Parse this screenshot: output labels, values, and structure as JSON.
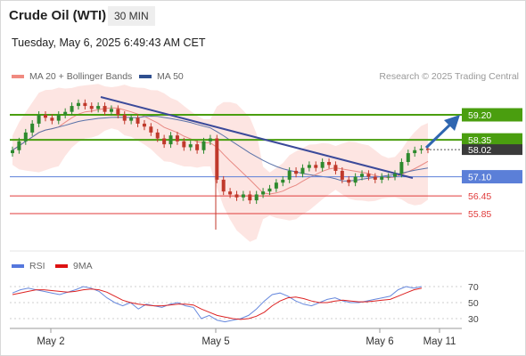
{
  "header": {
    "title": "Crude Oil (WTI)",
    "timeframe": "30 MIN",
    "timestamp": "Tuesday, May 6, 2025 6:49:43 AM CET"
  },
  "legend": {
    "ma20_label": "MA 20 + Bollinger Bands",
    "ma50_label": "MA 50",
    "rsi_label": "RSI",
    "ma9_label": "9MA",
    "research": "Research © 2025 Trading Central"
  },
  "colors": {
    "resistance": "#4a9e0f",
    "pivot": "#5b7fd8",
    "support": "#e03a3a",
    "bollinger_fill": "#fde0dd",
    "ma20": "#e88a84",
    "ma50": "#5a72a8",
    "trendline": "#3b4a9a",
    "arrow": "#2f66b0",
    "price_tag": "#3a3a3a",
    "candle_up": "#2e8a2e",
    "candle_down": "#c0392b",
    "rsi_line": "#6688dd",
    "rsi_ma": "#dd2222"
  },
  "chart_data": {
    "type": "candlestick",
    "title": "Crude Oil (WTI)",
    "timeframe": "30 MIN",
    "ylim": [
      55.5,
      60.0
    ],
    "x_ticks": [
      "May 2",
      "May 5",
      "May 6",
      "May 11"
    ],
    "last_price": 58.02,
    "levels": [
      {
        "label": "59.20",
        "value": 59.2,
        "kind": "resistance"
      },
      {
        "label": "58.35",
        "value": 58.35,
        "kind": "resistance"
      },
      {
        "label": "57.10",
        "value": 57.1,
        "kind": "pivot"
      },
      {
        "label": "56.45",
        "value": 56.45,
        "kind": "support"
      },
      {
        "label": "55.85",
        "value": 55.85,
        "kind": "support"
      }
    ],
    "last_price_label": "58.02",
    "series": [
      {
        "name": "MA 20 + Bollinger Bands"
      },
      {
        "name": "MA 50"
      }
    ],
    "close": [
      58.0,
      58.3,
      58.6,
      58.9,
      59.2,
      59.1,
      59.0,
      59.2,
      59.3,
      59.5,
      59.6,
      59.5,
      59.4,
      59.5,
      59.3,
      59.4,
      59.2,
      59.0,
      59.1,
      58.9,
      58.8,
      58.6,
      58.4,
      58.2,
      58.5,
      58.3,
      58.1,
      58.2,
      58.0,
      58.3,
      58.4,
      57.0,
      56.6,
      56.5,
      56.4,
      56.5,
      56.3,
      56.5,
      56.6,
      56.7,
      56.9,
      57.0,
      57.3,
      57.2,
      57.4,
      57.5,
      57.4,
      57.6,
      57.5,
      57.3,
      57.0,
      56.9,
      57.1,
      57.2,
      57.1,
      57.0,
      57.1,
      57.1,
      57.2,
      57.6,
      57.9,
      58.0,
      58.05,
      58.02
    ],
    "rsi_ticks": [
      70,
      50,
      30
    ],
    "rsi": [
      62,
      66,
      68,
      66,
      64,
      62,
      60,
      63,
      66,
      70,
      68,
      64,
      56,
      50,
      46,
      50,
      42,
      48,
      46,
      44,
      48,
      50,
      46,
      44,
      30,
      34,
      28,
      26,
      28,
      30,
      34,
      42,
      52,
      60,
      62,
      58,
      52,
      48,
      46,
      50,
      54,
      56,
      52,
      50,
      50,
      52,
      54,
      56,
      58,
      66,
      70,
      68,
      70
    ],
    "rsi_ma": [
      60,
      62,
      64,
      66,
      66,
      65,
      64,
      63,
      64,
      66,
      67,
      66,
      63,
      58,
      53,
      50,
      48,
      47,
      46,
      46,
      47,
      48,
      48,
      47,
      42,
      38,
      34,
      32,
      30,
      29,
      30,
      33,
      38,
      46,
      52,
      56,
      57,
      55,
      52,
      50,
      50,
      52,
      53,
      52,
      51,
      51,
      52,
      53,
      54,
      58,
      62,
      66,
      68
    ]
  }
}
